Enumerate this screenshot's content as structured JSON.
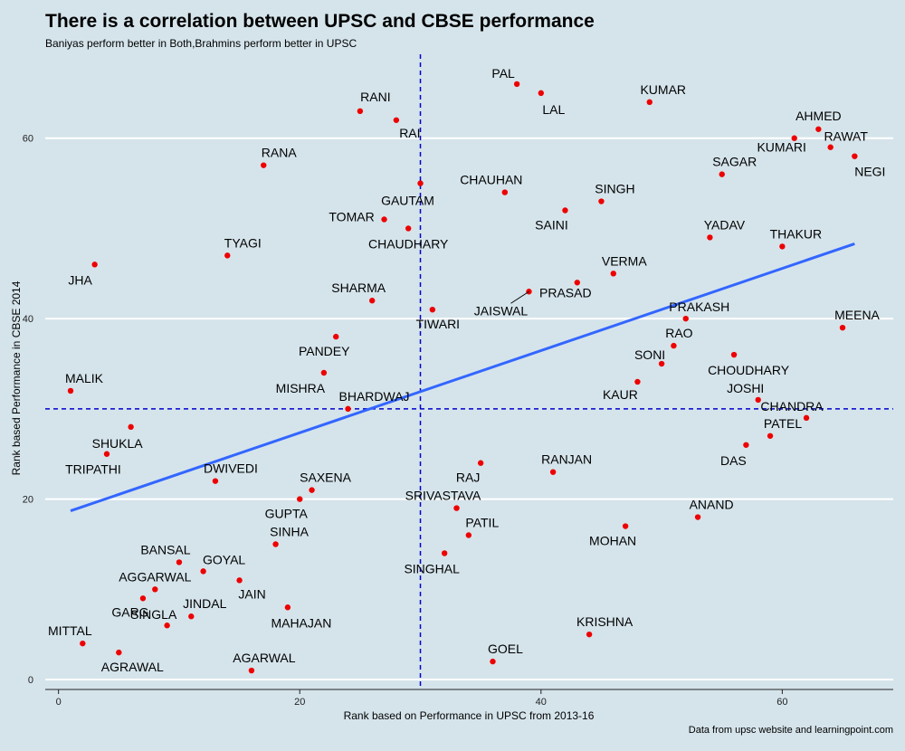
{
  "chart_data": {
    "type": "scatter",
    "title": "There is a correlation between UPSC and CBSE performance",
    "subtitle": "Baniyas perform better in Both,Brahmins perform better in UPSC",
    "xlabel": "Rank based on Performance in UPSC from 2013-16",
    "ylabel": "Rank based Performance in CBSE 2014",
    "caption": "Data from upsc website and learningpoint.com",
    "xlim": [
      -1.1,
      69.2
    ],
    "ylim": [
      -1.1,
      69.3
    ],
    "xticks": [
      0,
      20,
      40,
      60
    ],
    "yticks": [
      0,
      20,
      40,
      60
    ],
    "grid": "horizontal",
    "reference_lines": {
      "x": 30,
      "y": 30
    },
    "trend_line": {
      "x": [
        1,
        66
      ],
      "y": [
        18.7,
        48.3
      ]
    },
    "colors": {
      "points": "#ee0000",
      "trend": "#3366ff",
      "reference": "#0000cc",
      "grid": "#ffffff"
    },
    "points": [
      {
        "label": "PAL",
        "x": 38,
        "y": 66
      },
      {
        "label": "LAL",
        "x": 40,
        "y": 65
      },
      {
        "label": "KUMAR",
        "x": 49,
        "y": 64
      },
      {
        "label": "RANI",
        "x": 25,
        "y": 63
      },
      {
        "label": "RAI",
        "x": 28,
        "y": 62
      },
      {
        "label": "AHMED",
        "x": 63,
        "y": 61
      },
      {
        "label": "KUMARI",
        "x": 61,
        "y": 60
      },
      {
        "label": "RAWAT",
        "x": 64,
        "y": 59
      },
      {
        "label": "NEGI",
        "x": 66,
        "y": 58
      },
      {
        "label": "RANA",
        "x": 17,
        "y": 57
      },
      {
        "label": "SAGAR",
        "x": 55,
        "y": 56
      },
      {
        "label": "GAUTAM",
        "x": 30,
        "y": 55
      },
      {
        "label": "CHAUHAN",
        "x": 37,
        "y": 54
      },
      {
        "label": "SINGH",
        "x": 45,
        "y": 53
      },
      {
        "label": "SAINI",
        "x": 42,
        "y": 52
      },
      {
        "label": "TOMAR",
        "x": 27,
        "y": 51
      },
      {
        "label": "CHAUDHARY",
        "x": 29,
        "y": 50
      },
      {
        "label": "YADAV",
        "x": 54,
        "y": 49
      },
      {
        "label": "THAKUR",
        "x": 60,
        "y": 48
      },
      {
        "label": "TYAGI",
        "x": 14,
        "y": 47
      },
      {
        "label": "JHA",
        "x": 3,
        "y": 46
      },
      {
        "label": "VERMA",
        "x": 46,
        "y": 45
      },
      {
        "label": "PRASAD",
        "x": 43,
        "y": 44
      },
      {
        "label": "JAISWAL",
        "x": 39,
        "y": 43
      },
      {
        "label": "SHARMA",
        "x": 26,
        "y": 42
      },
      {
        "label": "TIWARI",
        "x": 31,
        "y": 41
      },
      {
        "label": "PRAKASH",
        "x": 52,
        "y": 40
      },
      {
        "label": "MEENA",
        "x": 65,
        "y": 39
      },
      {
        "label": "PANDEY",
        "x": 23,
        "y": 38
      },
      {
        "label": "RAO",
        "x": 51,
        "y": 37
      },
      {
        "label": "CHOUDHARY",
        "x": 56,
        "y": 36
      },
      {
        "label": "SONI",
        "x": 50,
        "y": 35
      },
      {
        "label": "MISHRA",
        "x": 22,
        "y": 34
      },
      {
        "label": "KAUR",
        "x": 48,
        "y": 33
      },
      {
        "label": "MALIK",
        "x": 1,
        "y": 32
      },
      {
        "label": "JOSHI",
        "x": 58,
        "y": 31
      },
      {
        "label": "BHARDWAJ",
        "x": 24,
        "y": 30
      },
      {
        "label": "CHANDRA",
        "x": 62,
        "y": 29
      },
      {
        "label": "SHUKLA",
        "x": 6,
        "y": 28
      },
      {
        "label": "PATEL",
        "x": 59,
        "y": 27
      },
      {
        "label": "DAS",
        "x": 57,
        "y": 26
      },
      {
        "label": "TRIPATHI",
        "x": 4,
        "y": 25
      },
      {
        "label": "RAJ",
        "x": 35,
        "y": 24
      },
      {
        "label": "RANJAN",
        "x": 41,
        "y": 23
      },
      {
        "label": "DWIVEDI",
        "x": 13,
        "y": 22
      },
      {
        "label": "SAXENA",
        "x": 21,
        "y": 21
      },
      {
        "label": "GUPTA",
        "x": 20,
        "y": 20
      },
      {
        "label": "SRIVASTAVA",
        "x": 33,
        "y": 19
      },
      {
        "label": "ANAND",
        "x": 53,
        "y": 18
      },
      {
        "label": "MOHAN",
        "x": 47,
        "y": 17
      },
      {
        "label": "PATIL",
        "x": 34,
        "y": 16
      },
      {
        "label": "SINHA",
        "x": 18,
        "y": 15
      },
      {
        "label": "SINGHAL",
        "x": 32,
        "y": 14
      },
      {
        "label": "BANSAL",
        "x": 10,
        "y": 13
      },
      {
        "label": "GOYAL",
        "x": 12,
        "y": 12
      },
      {
        "label": "JAIN",
        "x": 15,
        "y": 11
      },
      {
        "label": "AGGARWAL",
        "x": 8,
        "y": 10
      },
      {
        "label": "GARG",
        "x": 7,
        "y": 9
      },
      {
        "label": "MAHAJAN",
        "x": 19,
        "y": 8
      },
      {
        "label": "JINDAL",
        "x": 11,
        "y": 7
      },
      {
        "label": "SINGLA",
        "x": 9,
        "y": 6
      },
      {
        "label": "KRISHNA",
        "x": 44,
        "y": 5
      },
      {
        "label": "MITTAL",
        "x": 2,
        "y": 4
      },
      {
        "label": "AGRAWAL",
        "x": 5,
        "y": 3
      },
      {
        "label": "GOEL",
        "x": 36,
        "y": 2
      },
      {
        "label": "AGARWAL",
        "x": 16,
        "y": 1
      }
    ]
  }
}
